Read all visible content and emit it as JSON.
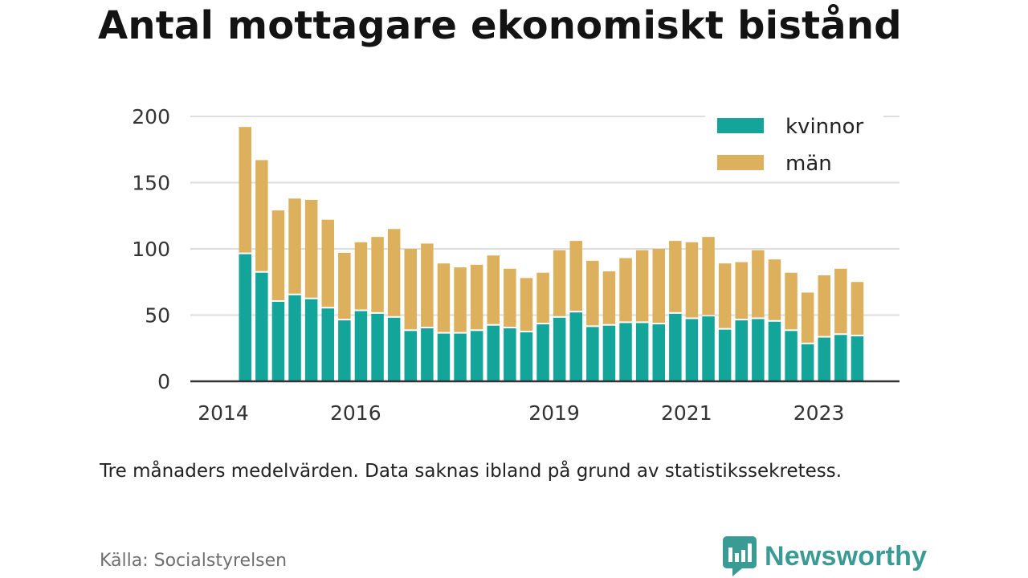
{
  "title": "Antal mottagare ekonomiskt bistånd",
  "note": "Tre månaders medelvärden. Data saknas ibland på grund av statistikssekretess.",
  "source": "Källa: Socialstyrelsen",
  "brand": {
    "name": "Newsworthy",
    "icon": "newsworthy-logo-icon",
    "color": "#3a9a94"
  },
  "colors": {
    "kvinnor": "#13a59a",
    "man": "#ddb05d",
    "grid": "#dddddd",
    "axis": "#333333"
  },
  "chart_data": {
    "type": "bar",
    "stacked": true,
    "title": "Antal mottagare ekonomiskt bistånd",
    "xlabel": "",
    "ylabel": "",
    "ylim": [
      0,
      200
    ],
    "yticks": [
      0,
      50,
      100,
      150,
      200
    ],
    "grid": true,
    "legend_position": "top-right",
    "x_tick_labels": [
      "2014",
      "2016",
      "2019",
      "2021",
      "2023"
    ],
    "series": [
      {
        "name": "kvinnor",
        "values": [
          96,
          82,
          60,
          65,
          62,
          55,
          46,
          53,
          51,
          48,
          38,
          40,
          36,
          36,
          38,
          42,
          40,
          37,
          43,
          48,
          52,
          41,
          42,
          44,
          44,
          43,
          51,
          47,
          49,
          39,
          46,
          47,
          45,
          38,
          28,
          33,
          35,
          34
        ]
      },
      {
        "name": "män",
        "values": [
          96,
          85,
          69,
          73,
          75,
          67,
          51,
          52,
          58,
          67,
          62,
          64,
          53,
          50,
          50,
          53,
          45,
          41,
          39,
          51,
          54,
          50,
          41,
          49,
          55,
          57,
          55,
          58,
          60,
          50,
          44,
          52,
          47,
          44,
          39,
          47,
          50,
          41
        ]
      }
    ]
  }
}
